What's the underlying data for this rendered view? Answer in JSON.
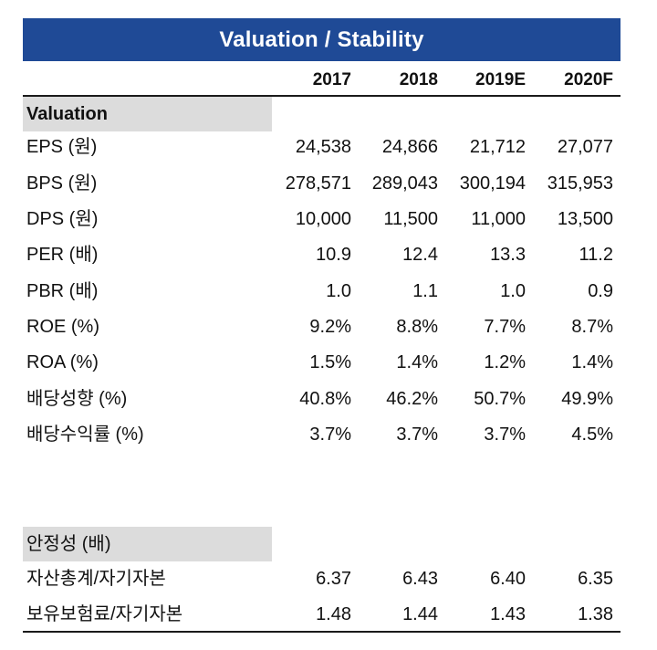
{
  "title": "Valuation / Stability",
  "columns": [
    "2017",
    "2018",
    "2019E",
    "2020F"
  ],
  "sections": [
    {
      "label": "Valuation",
      "rows": [
        {
          "label": "EPS (원)",
          "values": [
            "24,538",
            "24,866",
            "21,712",
            "27,077"
          ]
        },
        {
          "label": "BPS (원)",
          "values": [
            "278,571",
            "289,043",
            "300,194",
            "315,953"
          ]
        },
        {
          "label": "DPS (원)",
          "values": [
            "10,000",
            "11,500",
            "11,000",
            "13,500"
          ]
        },
        {
          "label": "PER (배)",
          "values": [
            "10.9",
            "12.4",
            "13.3",
            "11.2"
          ]
        },
        {
          "label": "PBR (배)",
          "values": [
            "1.0",
            "1.1",
            "1.0",
            "0.9"
          ]
        },
        {
          "label": "ROE (%)",
          "values": [
            "9.2%",
            "8.8%",
            "7.7%",
            "8.7%"
          ]
        },
        {
          "label": "ROA (%)",
          "values": [
            "1.5%",
            "1.4%",
            "1.2%",
            "1.4%"
          ]
        },
        {
          "label": "배당성향 (%)",
          "values": [
            "40.8%",
            "46.2%",
            "50.7%",
            "49.9%"
          ]
        },
        {
          "label": "배당수익률 (%)",
          "values": [
            "3.7%",
            "3.7%",
            "3.7%",
            "4.5%"
          ]
        }
      ]
    },
    {
      "label": "안정성 (배)",
      "rows": [
        {
          "label": "자산총계/자기자본",
          "values": [
            "6.37",
            "6.43",
            "6.40",
            "6.35"
          ]
        },
        {
          "label": "보유보험료/자기자본",
          "values": [
            "1.48",
            "1.44",
            "1.43",
            "1.38"
          ]
        }
      ]
    }
  ]
}
